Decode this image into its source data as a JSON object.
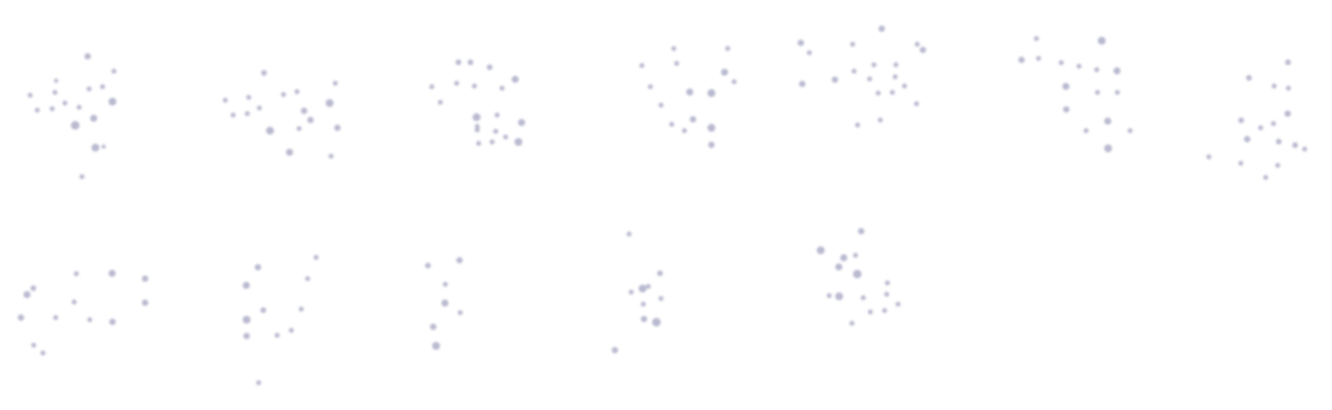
{
  "colors": {
    "background": "#ffffff",
    "dot": "#b9b9d0"
  },
  "clusters": [
    {
      "id": "cluster-1"
    },
    {
      "id": "cluster-2"
    },
    {
      "id": "cluster-3"
    },
    {
      "id": "cluster-4"
    },
    {
      "id": "cluster-5"
    },
    {
      "id": "cluster-6"
    },
    {
      "id": "cluster-7"
    },
    {
      "id": "cluster-8"
    },
    {
      "id": "cluster-9"
    },
    {
      "id": "cluster-10"
    },
    {
      "id": "cluster-11"
    },
    {
      "id": "cluster-12"
    }
  ]
}
